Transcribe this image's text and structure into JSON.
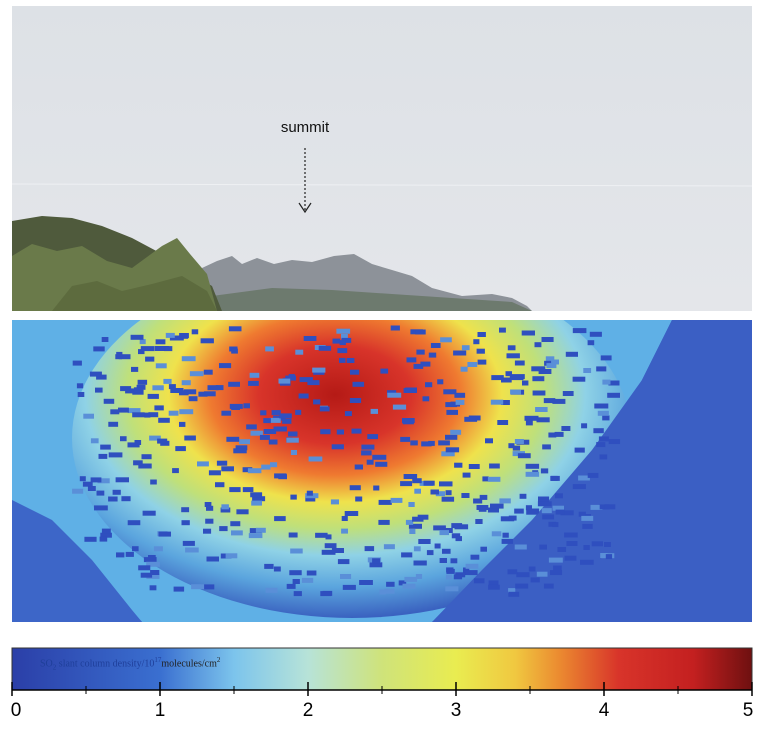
{
  "photo": {
    "annotation": "summit"
  },
  "heatmap": {
    "colormap": "jet",
    "description_colors": [
      "#2a4fb5",
      "#5fb4e8",
      "#9fd8e8",
      "#d6e85a",
      "#f0e84a",
      "#f0a030",
      "#d83a2a",
      "#a01818"
    ]
  },
  "colorbar": {
    "label_prefix": "SO",
    "label_middle": " slant column density/10",
    "label_suffix": "molecules/cm",
    "ticks": [
      "0",
      "1",
      "2",
      "3",
      "4",
      "5"
    ],
    "range": [
      0,
      5
    ]
  }
}
